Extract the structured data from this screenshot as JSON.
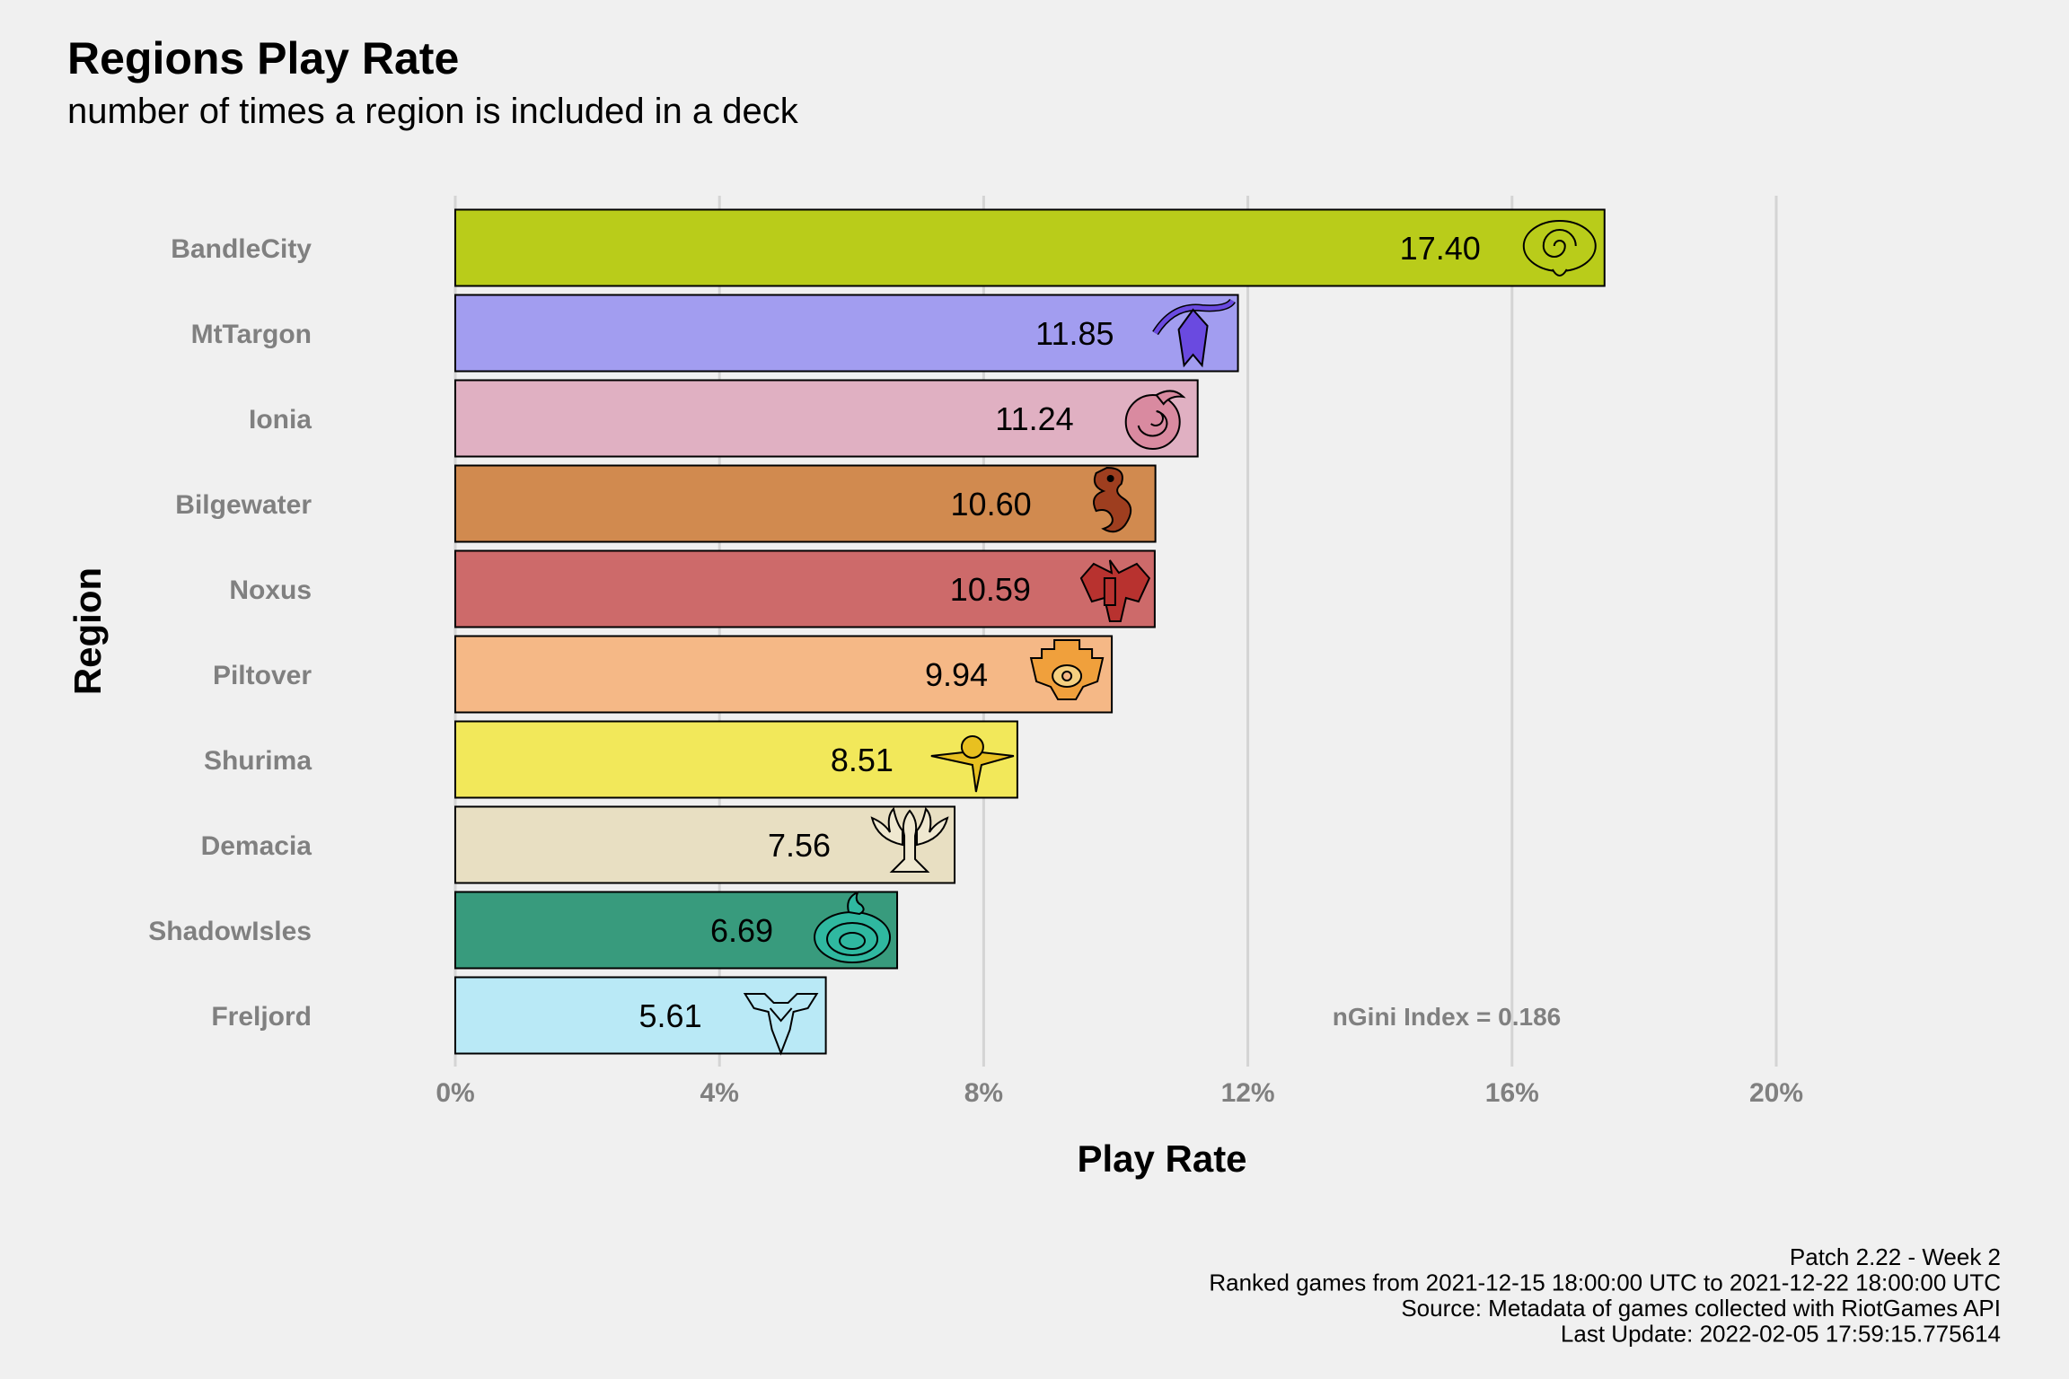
{
  "chart_data": {
    "type": "bar",
    "orientation": "horizontal",
    "title": "Regions Play Rate",
    "subtitle": "number of times a region is included in a deck",
    "xlabel": "Play Rate",
    "ylabel": "Region",
    "xlim": [
      0,
      20
    ],
    "x_ticks": [
      0,
      4,
      8,
      12,
      16,
      20
    ],
    "x_tick_labels": [
      "0%",
      "4%",
      "8%",
      "12%",
      "16%",
      "20%"
    ],
    "grid": "vertical major",
    "categories": [
      "BandleCity",
      "MtTargon",
      "Ionia",
      "Bilgewater",
      "Noxus",
      "Piltover",
      "Shurima",
      "Demacia",
      "ShadowIsles",
      "Freljord"
    ],
    "values": [
      17.4,
      11.85,
      11.24,
      10.6,
      10.59,
      9.94,
      8.51,
      7.56,
      6.69,
      5.61
    ],
    "value_labels": [
      "17.40",
      "11.85",
      "11.24",
      "10.60",
      "10.59",
      "9.94",
      "8.51",
      "7.56",
      "6.69",
      "5.61"
    ],
    "bar_colors": [
      "#b9cc1a",
      "#a29df0",
      "#e0b0c2",
      "#d18a4f",
      "#cd6a6a",
      "#f5b886",
      "#f2e85a",
      "#e8dfc2",
      "#389b7d",
      "#b9e9f6"
    ],
    "icons": [
      "bandlecity-icon",
      "mttargon-icon",
      "ionia-icon",
      "bilgewater-icon",
      "noxus-icon",
      "piltover-icon",
      "shurima-icon",
      "demacia-icon",
      "shadowisles-icon",
      "freljord-icon"
    ],
    "icon_colors": [
      "#b9cc1a",
      "#6a4ae0",
      "#d98aa0",
      "#9e3e1f",
      "#b8322f",
      "#f0a03c",
      "#e8c020",
      "#efe8d0",
      "#2fb8a0",
      "#b9e9f6"
    ],
    "annotation": "nGini Index = 0.186",
    "caption": [
      "Patch 2.22 - Week 2",
      "Ranked games from 2021-12-15 18:00:00 UTC to 2021-12-22 18:00:00 UTC",
      "Source: Metadata of games collected with RiotGames API",
      "Last Update: 2022-02-05 17:59:15.775614"
    ]
  }
}
